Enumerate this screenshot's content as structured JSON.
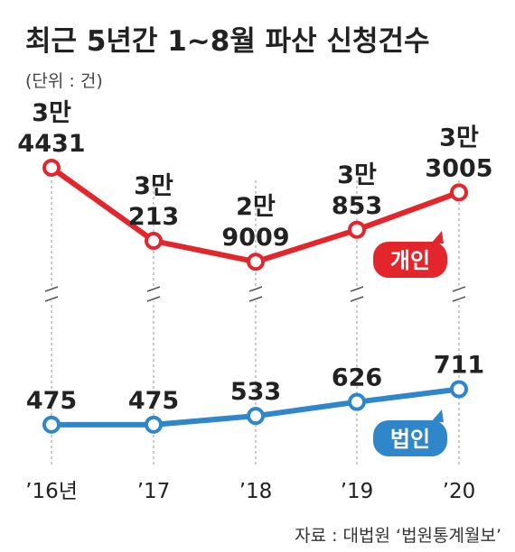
{
  "title": "최근 5년간 1~8월 파산 신청건수",
  "unit": "(단위 : 건)",
  "source": "자료 : 대법원 ‘법원통계월보’",
  "colors": {
    "individual": "#e3262b",
    "corporate": "#2f86c9",
    "title": "#222222",
    "guide": "#9a9a9a"
  },
  "chart_data": {
    "type": "line",
    "title": "최근 5년간 1~8월 파산 신청건수",
    "categories": [
      "’16년",
      "’17",
      "’18",
      "’19",
      "’20"
    ],
    "ylabel": "(단위 : 건)",
    "axis_break": true,
    "series": [
      {
        "name": "개인",
        "values": [
          34431,
          30213,
          29009,
          30853,
          33005
        ],
        "labels": [
          [
            "3만",
            "4431"
          ],
          [
            "3만",
            "213"
          ],
          [
            "2만",
            "9009"
          ],
          [
            "3만",
            "853"
          ],
          [
            "3만",
            "3005"
          ]
        ]
      },
      {
        "name": "법인",
        "values": [
          475,
          475,
          533,
          626,
          711
        ],
        "labels": [
          [
            "475"
          ],
          [
            "475"
          ],
          [
            "533"
          ],
          [
            "626"
          ],
          [
            "711"
          ]
        ]
      }
    ]
  }
}
